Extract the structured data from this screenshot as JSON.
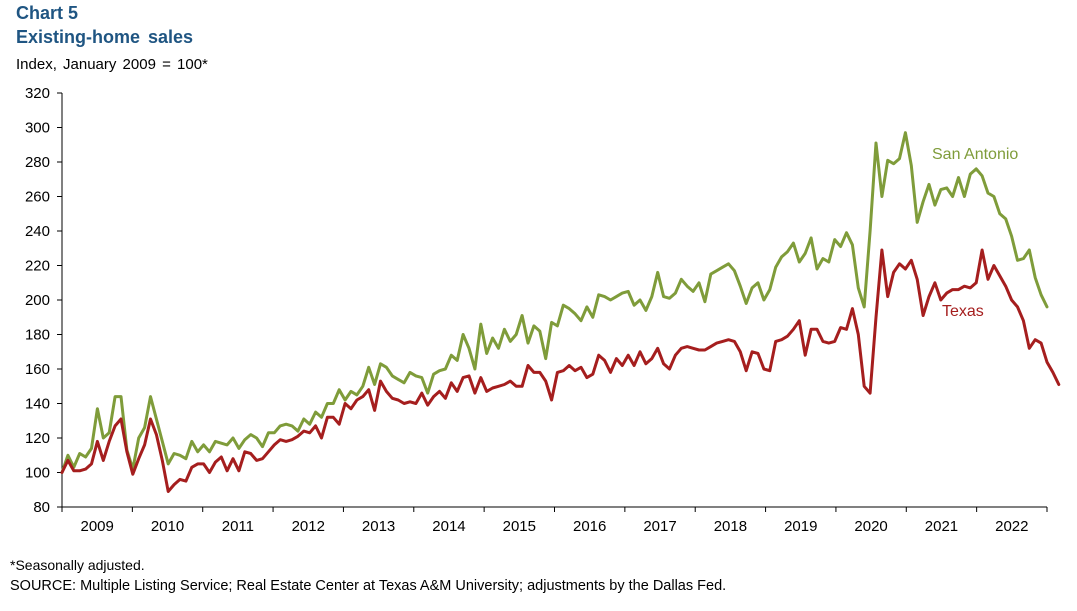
{
  "header": {
    "chart_number": "Chart 5",
    "title": "Existing-home  sales",
    "subtitle": "Index,  January  2009  =  100*"
  },
  "footer": {
    "footnote": "*Seasonally adjusted.",
    "source": "SOURCE: Multiple Listing Service; Real Estate Center at Texas A&M University;  adjustments  by the Dallas Fed."
  },
  "chart_data": {
    "type": "line",
    "title": "Existing-home sales",
    "subtitle": "Index, January 2009 = 100*",
    "xlabel": "",
    "ylabel": "Index, January 2009 = 100*",
    "ylim": [
      80,
      320
    ],
    "yticks": [
      80,
      100,
      120,
      140,
      160,
      180,
      200,
      220,
      240,
      260,
      280,
      300,
      320
    ],
    "xticks": [
      "2009",
      "2010",
      "2011",
      "2012",
      "2013",
      "2014",
      "2015",
      "2016",
      "2017",
      "2018",
      "2019",
      "2020",
      "2021",
      "2022"
    ],
    "x_start": "2009-01",
    "x_frequency": "monthly",
    "grid": false,
    "legend": "inline-labels",
    "colors": {
      "San Antonio": "#7f9c3a",
      "Texas": "#a51e1e"
    },
    "series": [
      {
        "name": "San Antonio",
        "label_position": "upper-right",
        "values": [
          100,
          110,
          103,
          111,
          109,
          114,
          137,
          120,
          123,
          144,
          144,
          113,
          102,
          120,
          126,
          144,
          131,
          118,
          105,
          111,
          110,
          108,
          118,
          112,
          116,
          112,
          118,
          117,
          116,
          120,
          114,
          119,
          122,
          120,
          115,
          123,
          123,
          127,
          128,
          127,
          124,
          131,
          128,
          135,
          132,
          140,
          140,
          148,
          142,
          147,
          145,
          150,
          161,
          151,
          163,
          161,
          156,
          154,
          152,
          158,
          156,
          155,
          146,
          157,
          159,
          160,
          168,
          165,
          180,
          172,
          160,
          186,
          169,
          178,
          172,
          183,
          176,
          180,
          191,
          175,
          185,
          182,
          166,
          187,
          185,
          197,
          195,
          192,
          188,
          196,
          190,
          203,
          202,
          200,
          202,
          204,
          205,
          197,
          200,
          194,
          202,
          216,
          202,
          201,
          204,
          212,
          208,
          205,
          210,
          199,
          215,
          217,
          219,
          221,
          217,
          208,
          198,
          207,
          210,
          200,
          206,
          219,
          225,
          228,
          233,
          222,
          227,
          236,
          218,
          224,
          222,
          235,
          231,
          239,
          232,
          207,
          196,
          240,
          291,
          260,
          281,
          279,
          282,
          297,
          278,
          245,
          257,
          267,
          255,
          264,
          265,
          260,
          271,
          260,
          273,
          276,
          272,
          262,
          260,
          250,
          247,
          237,
          223,
          224,
          229,
          213,
          203,
          196
        ]
      },
      {
        "name": "Texas",
        "label_position": "right",
        "values": [
          100,
          107,
          101,
          101,
          102,
          105,
          118,
          107,
          118,
          127,
          131,
          112,
          99,
          108,
          116,
          131,
          122,
          107,
          89,
          93,
          96,
          95,
          103,
          105,
          105,
          100,
          106,
          109,
          101,
          108,
          101,
          112,
          111,
          107,
          108,
          112,
          116,
          119,
          118,
          119,
          121,
          124,
          123,
          127,
          120,
          132,
          132,
          128,
          140,
          137,
          142,
          144,
          148,
          136,
          153,
          147,
          143,
          142,
          140,
          141,
          140,
          146,
          139,
          144,
          147,
          143,
          152,
          147,
          155,
          156,
          146,
          155,
          147,
          149,
          150,
          151,
          153,
          150,
          150,
          162,
          158,
          158,
          153,
          142,
          158,
          159,
          162,
          159,
          161,
          155,
          157,
          168,
          165,
          158,
          166,
          162,
          168,
          162,
          170,
          163,
          166,
          172,
          163,
          160,
          168,
          172,
          173,
          172,
          171,
          171,
          173,
          175,
          176,
          177,
          176,
          170,
          159,
          170,
          169,
          160,
          159,
          176,
          177,
          179,
          183,
          188,
          168,
          183,
          183,
          176,
          175,
          176,
          184,
          183,
          195,
          180,
          150,
          146,
          190,
          229,
          202,
          216,
          221,
          218,
          223,
          212,
          191,
          202,
          210,
          200,
          204,
          206,
          206,
          208,
          207,
          210,
          229,
          212,
          220,
          214,
          208,
          200,
          196,
          188,
          172,
          177,
          175,
          164,
          158,
          151
        ]
      }
    ]
  }
}
